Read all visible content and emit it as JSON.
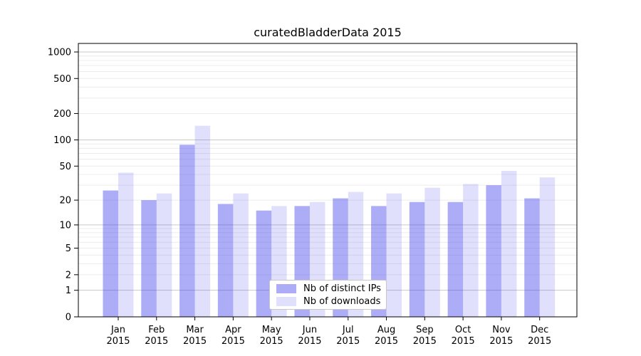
{
  "figure": {
    "title": "curatedBladderData 2015"
  },
  "chart_data": {
    "type": "bar",
    "title": "curatedBladderData 2015",
    "categories": [
      "Jan 2015",
      "Feb 2015",
      "Mar 2015",
      "Apr 2015",
      "May 2015",
      "Jun 2015",
      "Jul 2015",
      "Aug 2015",
      "Sep 2015",
      "Oct 2015",
      "Nov 2015",
      "Dec 2015"
    ],
    "series": [
      {
        "name": "Nb of distinct IPs",
        "color": "rgba(60,60,235,0.42)",
        "color_hex": "#a6a6f4",
        "values": [
          26,
          20,
          88,
          18,
          15,
          17,
          21,
          17,
          19,
          19,
          30,
          21
        ]
      },
      {
        "name": "Nb of downloads",
        "color": "rgba(60,60,235,0.16)",
        "color_hex": "#dcdcf8",
        "values": [
          42,
          24,
          145,
          24,
          17,
          19,
          25,
          24,
          28,
          31,
          44,
          37
        ]
      }
    ],
    "xlabel": "",
    "ylabel": "",
    "y_scale": "log1p",
    "y_ticks": [
      0,
      1,
      2,
      5,
      10,
      20,
      50,
      100,
      200,
      500,
      1000
    ],
    "y_max_display": 1250,
    "grid": {
      "major": [
        1,
        10,
        100,
        1000
      ],
      "minor": [
        2,
        3,
        4,
        5,
        6,
        7,
        8,
        9,
        20,
        30,
        40,
        50,
        60,
        70,
        80,
        90,
        200,
        300,
        400,
        500,
        600,
        700,
        800,
        900
      ]
    },
    "legend": {
      "position": "lower-center"
    },
    "style": {
      "background": "#ffffff",
      "axis_color": "#000000",
      "major_grid_color": "#c9c9c9",
      "minor_grid_color": "#ececec",
      "legend_border_color": "#c8c8c8"
    }
  }
}
